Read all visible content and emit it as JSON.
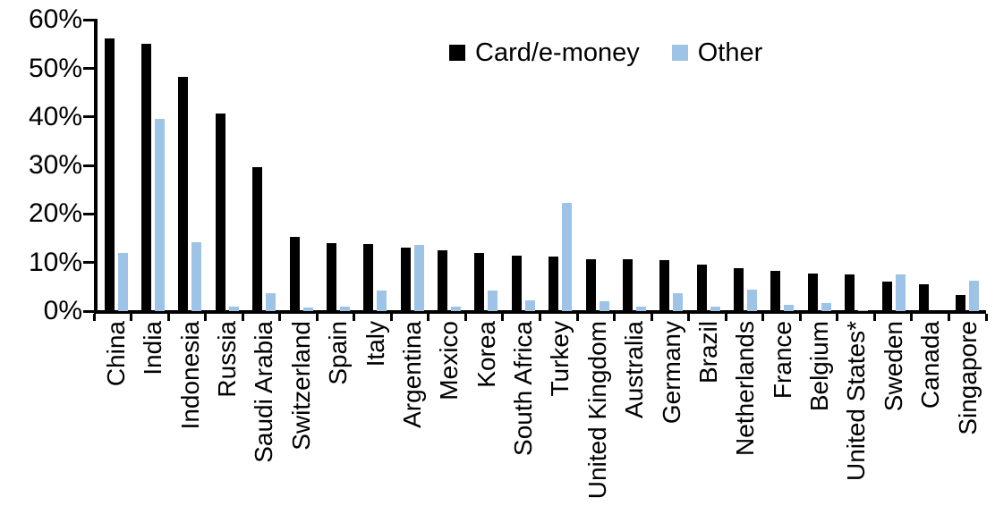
{
  "chart_data": {
    "type": "bar",
    "title": "",
    "xlabel": "",
    "ylabel": "",
    "categories": [
      "China",
      "India",
      "Indonesia",
      "Russia",
      "Saudi Arabia",
      "Switzerland",
      "Spain",
      "Italy",
      "Argentina",
      "Mexico",
      "Korea",
      "South Africa",
      "Turkey",
      "United Kingdom",
      "Australia",
      "Germany",
      "Brazil",
      "Netherlands",
      "France",
      "Belgium",
      "United States*",
      "Sweden",
      "Canada",
      "Singapore"
    ],
    "series": [
      {
        "name": "Card/e-money",
        "color": "#000000",
        "values": [
          56.2,
          55.0,
          48.3,
          40.6,
          29.7,
          15.3,
          13.9,
          13.8,
          13.0,
          12.6,
          12.0,
          11.4,
          11.3,
          10.7,
          10.6,
          10.4,
          9.6,
          8.9,
          8.3,
          7.8,
          7.5,
          6.1,
          5.5,
          3.4
        ]
      },
      {
        "name": "Other",
        "color": "#9dc3e6",
        "values": [
          12.0,
          39.5,
          14.2,
          1.0,
          3.6,
          0.7,
          1.0,
          4.2,
          13.6,
          1.0,
          4.2,
          2.2,
          22.3,
          2.1,
          1.0,
          3.7,
          1.0,
          4.5,
          1.3,
          1.7,
          0.2,
          7.6,
          0.0,
          6.3
        ]
      }
    ],
    "ylim": [
      0,
      60
    ],
    "yticks": [
      {
        "value": 0,
        "label": "0%"
      },
      {
        "value": 10,
        "label": "10%"
      },
      {
        "value": 20,
        "label": "20%"
      },
      {
        "value": 30,
        "label": "30%"
      },
      {
        "value": 40,
        "label": "40%"
      },
      {
        "value": 50,
        "label": "50%"
      },
      {
        "value": 60,
        "label": "60%"
      }
    ],
    "grid": false,
    "legend_position": "top-center",
    "axis_color": "#000000",
    "text_color": "#000000"
  }
}
